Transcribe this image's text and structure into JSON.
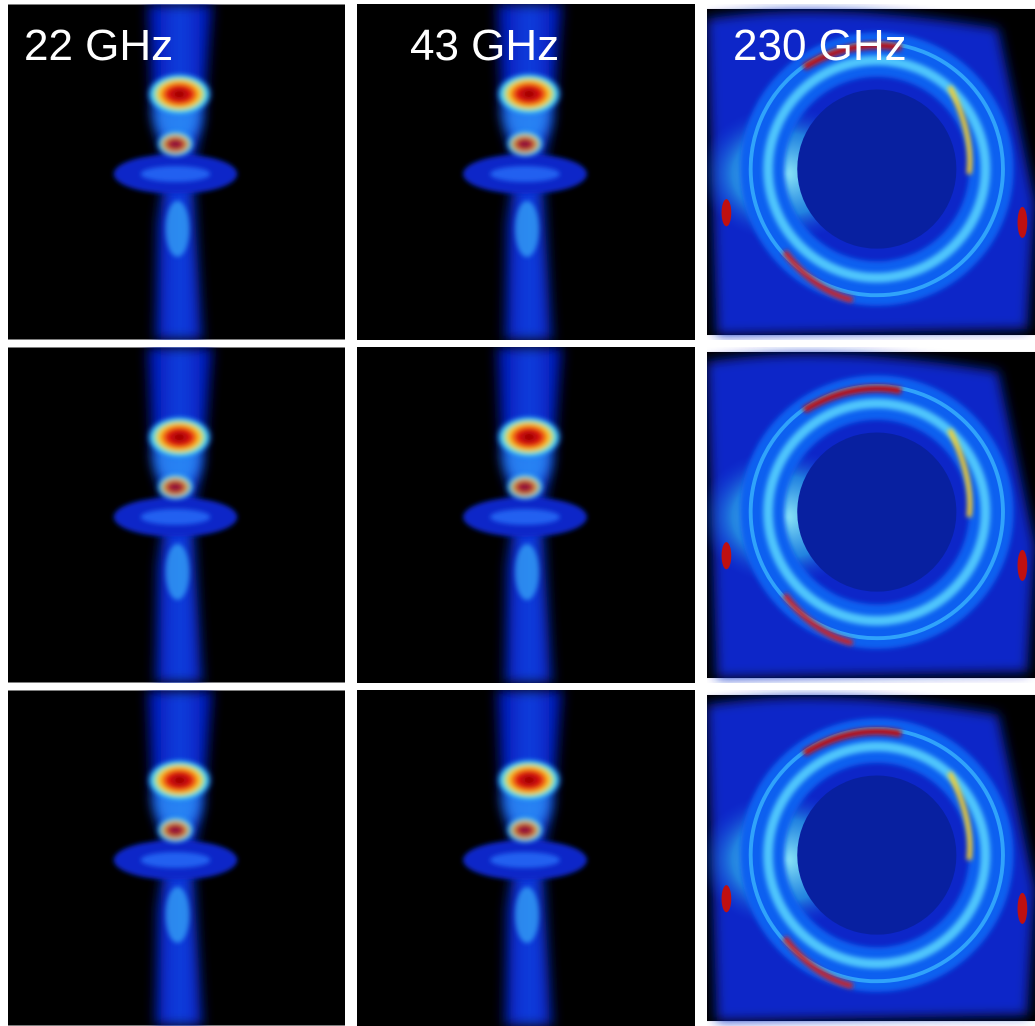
{
  "panels": {
    "labels": [
      "22 GHz",
      "43 GHz",
      "230 GHz"
    ]
  }
}
